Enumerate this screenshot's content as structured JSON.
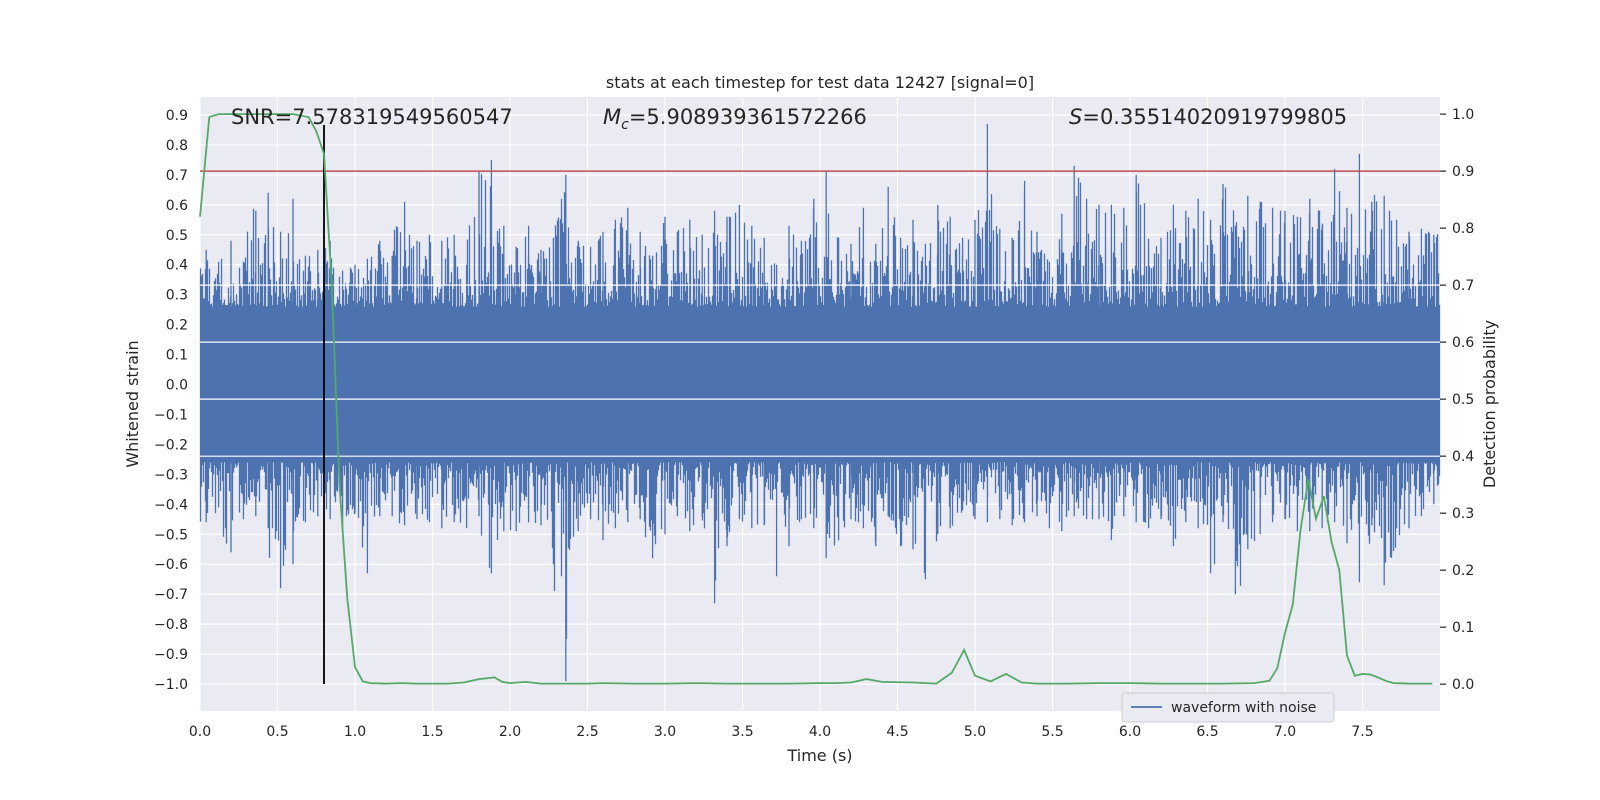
{
  "chart_data": {
    "type": "line",
    "title": "stats at each timestep for test data 12427 [signal=0]",
    "xlabel": "Time (s)",
    "ylabel_left": "Whitened strain",
    "ylabel_right": "Detection probability",
    "xlim": [
      0.0,
      8.0
    ],
    "ylim_left": [
      -1.09,
      0.96
    ],
    "ylim_right": [
      -0.047,
      1.03
    ],
    "x_ticks": [
      "0.0",
      "0.5",
      "1.0",
      "1.5",
      "2.0",
      "2.5",
      "3.0",
      "3.5",
      "4.0",
      "4.5",
      "5.0",
      "5.5",
      "6.0",
      "6.5",
      "7.0",
      "7.5"
    ],
    "y_ticks_left": [
      "0.9",
      "0.8",
      "0.7",
      "0.6",
      "0.5",
      "0.4",
      "0.3",
      "0.2",
      "0.1",
      "0.0",
      "−0.1",
      "−0.2",
      "−0.3",
      "−0.4",
      "−0.5",
      "−0.6",
      "−0.7",
      "−0.8",
      "−0.9",
      "−1.0"
    ],
    "y_ticks_right": [
      "1.0",
      "0.9",
      "0.8",
      "0.7",
      "0.6",
      "0.5",
      "0.4",
      "0.3",
      "0.2",
      "0.1",
      "0.0"
    ],
    "grid": true,
    "legend_position": "bottom-right",
    "annotations": {
      "snr": "SNR=7.578319549560547",
      "mc_symbol": "M",
      "mc_sub": "c",
      "mc_value": "=5.908939361572266",
      "s_symbol": "S",
      "s_value": "=0.35514020919799805"
    },
    "series": [
      {
        "name": "waveform with noise",
        "color": "#4c72b0",
        "envelope_top": [
          0.45,
          0.41,
          0.48,
          0.41,
          0.58,
          0.64,
          0.51,
          0.62,
          0.43,
          0.45,
          0.48,
          0.38,
          0.4,
          0.42,
          0.48,
          0.43,
          0.61,
          0.48,
          0.5,
          0.48,
          0.5,
          0.4,
          0.71,
          0.75,
          0.53,
          0.46,
          0.53,
          0.45,
          0.49,
          0.7,
          0.48,
          0.46,
          0.51,
          0.55,
          0.59,
          0.51,
          0.43,
          0.56,
          0.51,
          0.55,
          0.5,
          0.58,
          0.56,
          0.6,
          0.53,
          0.49,
          0.4,
          0.53,
          0.48,
          0.62,
          0.71,
          0.49,
          0.47,
          0.59,
          0.47,
          0.66,
          0.49,
          0.55,
          0.47,
          0.6,
          0.56,
          0.49,
          0.55,
          0.87,
          0.52,
          0.49,
          0.68,
          0.51,
          0.41,
          0.57,
          0.73,
          0.62,
          0.6,
          0.6,
          0.59,
          0.7,
          0.48,
          0.49,
          0.6,
          0.58,
          0.62,
          0.55,
          0.67,
          0.53,
          0.63,
          0.61,
          0.59,
          0.58,
          0.56,
          0.62,
          0.53,
          0.72,
          0.59,
          0.77,
          0.61,
          0.63,
          0.55,
          0.51,
          0.52,
          0.5
        ],
        "envelope_bottom": [
          -0.46,
          -0.41,
          -0.56,
          -0.45,
          -0.44,
          -0.48,
          -0.68,
          -0.6,
          -0.46,
          -0.44,
          -0.45,
          -0.49,
          -0.43,
          -0.63,
          -0.44,
          -0.44,
          -0.47,
          -0.45,
          -0.46,
          -0.48,
          -0.46,
          -0.48,
          -0.44,
          -0.63,
          -0.49,
          -0.49,
          -0.46,
          -0.47,
          -0.6,
          -0.99,
          -0.49,
          -0.45,
          -0.52,
          -0.48,
          -0.46,
          -0.45,
          -0.58,
          -0.5,
          -0.44,
          -0.49,
          -0.44,
          -0.73,
          -0.54,
          -0.45,
          -0.48,
          -0.47,
          -0.64,
          -0.54,
          -0.45,
          -0.48,
          -0.58,
          -0.52,
          -0.45,
          -0.48,
          -0.54,
          -0.44,
          -0.54,
          -0.55,
          -0.65,
          -0.5,
          -0.48,
          -0.42,
          -0.45,
          -0.46,
          -0.45,
          -0.47,
          -0.46,
          -0.44,
          -0.48,
          -0.49,
          -0.44,
          -0.45,
          -0.45,
          -0.52,
          -0.44,
          -0.46,
          -0.48,
          -0.45,
          -0.54,
          -0.46,
          -0.48,
          -0.63,
          -0.46,
          -0.7,
          -0.55,
          -0.5,
          -0.46,
          -0.45,
          -0.49,
          -0.49,
          -0.48,
          -0.46,
          -0.53,
          -0.66,
          -0.47,
          -0.67,
          -0.48,
          -0.48,
          -0.44,
          -0.4
        ]
      },
      {
        "name": "",
        "color": "#55a868",
        "x": [
          0.0,
          0.06,
          0.12,
          0.2,
          0.3,
          0.4,
          0.5,
          0.6,
          0.7,
          0.75,
          0.8,
          0.85,
          0.9,
          0.95,
          1.0,
          1.05,
          1.1,
          1.2,
          1.3,
          1.4,
          1.5,
          1.6,
          1.7,
          1.8,
          1.9,
          1.95,
          2.0,
          2.1,
          2.2,
          2.3,
          2.4,
          2.5,
          2.6,
          2.8,
          3.0,
          3.2,
          3.4,
          3.6,
          3.8,
          4.0,
          4.1,
          4.2,
          4.3,
          4.4,
          4.6,
          4.75,
          4.85,
          4.93,
          5.0,
          5.1,
          5.2,
          5.3,
          5.4,
          5.6,
          5.8,
          6.0,
          6.2,
          6.4,
          6.6,
          6.8,
          6.9,
          6.95,
          7.0,
          7.05,
          7.1,
          7.15,
          7.2,
          7.25,
          7.3,
          7.35,
          7.4,
          7.45,
          7.5,
          7.55,
          7.6,
          7.65,
          7.7,
          7.8,
          7.95
        ],
        "y": [
          0.82,
          0.995,
          1.0,
          1.0,
          1.0,
          1.0,
          1.0,
          1.0,
          0.995,
          0.97,
          0.93,
          0.7,
          0.35,
          0.15,
          0.03,
          0.005,
          0.002,
          0.001,
          0.002,
          0.001,
          0.001,
          0.001,
          0.003,
          0.009,
          0.012,
          0.004,
          0.002,
          0.004,
          0.001,
          0.001,
          0.001,
          0.001,
          0.002,
          0.001,
          0.001,
          0.002,
          0.001,
          0.001,
          0.001,
          0.002,
          0.002,
          0.003,
          0.009,
          0.004,
          0.003,
          0.001,
          0.02,
          0.06,
          0.015,
          0.005,
          0.018,
          0.003,
          0.001,
          0.001,
          0.002,
          0.002,
          0.001,
          0.001,
          0.001,
          0.002,
          0.006,
          0.028,
          0.09,
          0.14,
          0.27,
          0.36,
          0.29,
          0.33,
          0.25,
          0.2,
          0.05,
          0.015,
          0.018,
          0.017,
          0.012,
          0.006,
          0.002,
          0.001,
          0.001
        ]
      }
    ],
    "threshold_line": {
      "y_right": 0.9,
      "color": "#c44e52"
    },
    "vertical_marker": {
      "x": 0.8,
      "color": "#000000"
    }
  }
}
